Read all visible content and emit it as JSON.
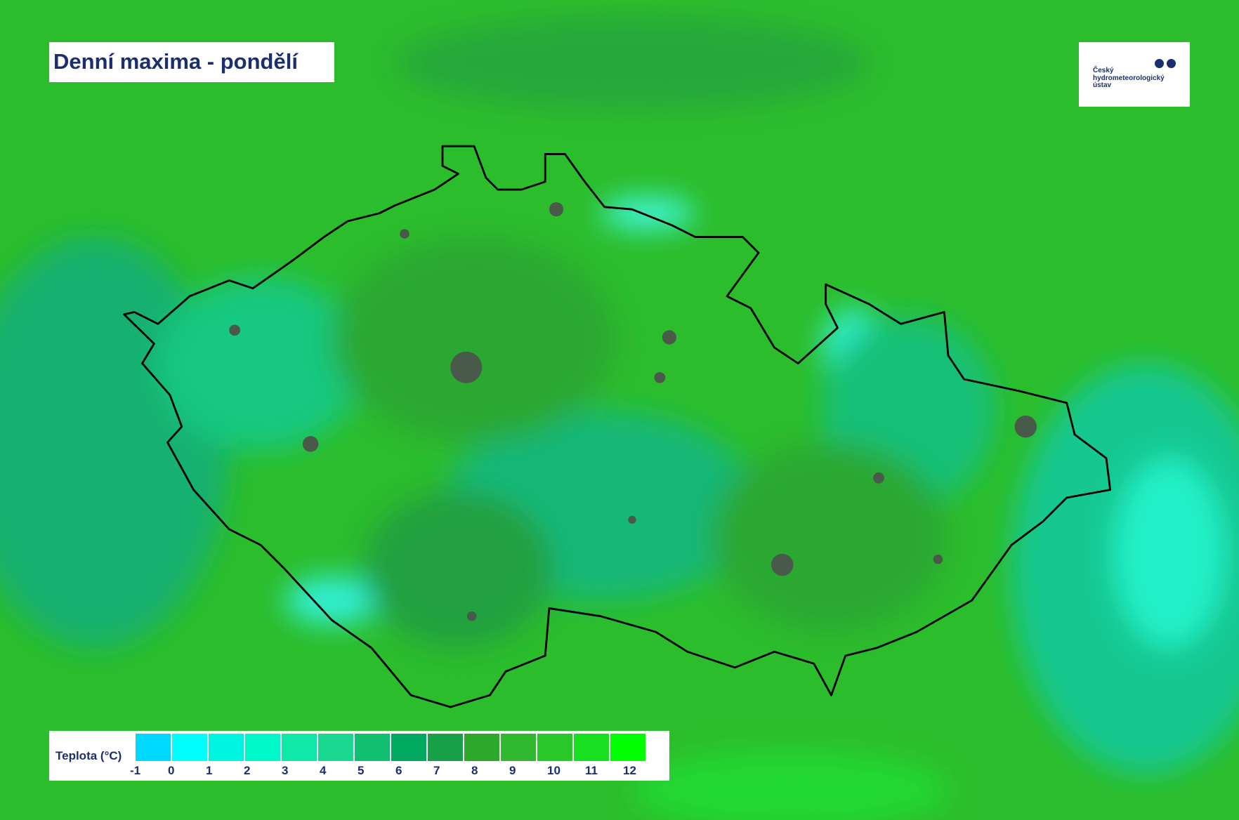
{
  "title": "Denní maxima - pondělí",
  "logo": {
    "lines": [
      "Český",
      "hydrometeorologický",
      "ústav"
    ]
  },
  "legend": {
    "label": "Teplota (°C)",
    "ticks": [
      "-1",
      "0",
      "1",
      "2",
      "3",
      "4",
      "5",
      "6",
      "7",
      "8",
      "9",
      "10",
      "11",
      "12"
    ],
    "colors": [
      "#00d8ff",
      "#00ffff",
      "#00f5e0",
      "#00f8c8",
      "#10e8a8",
      "#1ad890",
      "#10c070",
      "#00a860",
      "#18a048",
      "#2ea82a",
      "#30b830",
      "#28c828",
      "#18e020",
      "#00ff00"
    ]
  },
  "map": {
    "background_color": "#2cbd2c",
    "border_color": "#000000",
    "city_color": "#4a5a4a"
  }
}
